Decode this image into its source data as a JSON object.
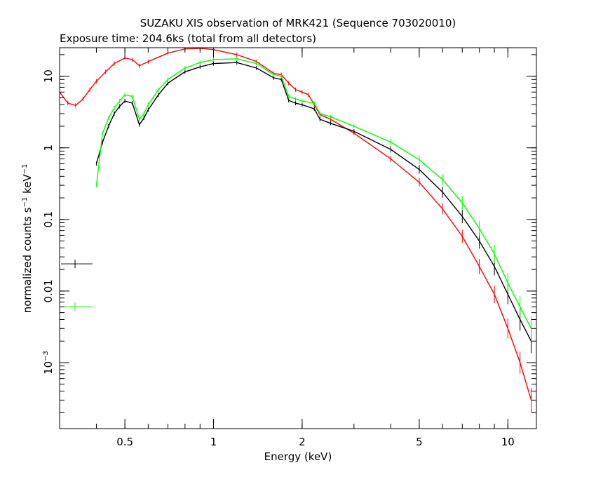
{
  "chart_data": {
    "type": "scatter",
    "title": "SUZAKU XIS observation of MRK421 (Sequence 703020010)",
    "subtitle": "Exposure time: 204.6ks (total from all detectors)",
    "xlabel": "Energy (keV)",
    "ylabel_main": "normalized counts s",
    "ylabel_sup1": "−1",
    "ylabel_mid": " keV",
    "ylabel_sup2": "−1",
    "x_scale": "log",
    "y_scale": "log",
    "xlim": [
      0.3,
      12.5
    ],
    "ylim": [
      0.00012,
      25
    ],
    "grid": false,
    "x_ticks": [
      {
        "value": 0.5,
        "label": "0.5"
      },
      {
        "value": 1,
        "label": "1"
      },
      {
        "value": 2,
        "label": "2"
      },
      {
        "value": 5,
        "label": "5"
      },
      {
        "value": 10,
        "label": "10"
      }
    ],
    "y_ticks": [
      {
        "value": 10,
        "label": "10",
        "sup": ""
      },
      {
        "value": 1,
        "label": "1",
        "sup": ""
      },
      {
        "value": 0.1,
        "label": "0.1",
        "sup": ""
      },
      {
        "value": 0.01,
        "label": "0.01",
        "sup": ""
      },
      {
        "value": 0.001,
        "label": "10",
        "sup": "−3"
      }
    ],
    "series": [
      {
        "color": "#ff0000",
        "x": [
          0.3,
          0.32,
          0.34,
          0.36,
          0.38,
          0.4,
          0.43,
          0.46,
          0.5,
          0.53,
          0.56,
          0.6,
          0.7,
          0.8,
          0.9,
          1.0,
          1.2,
          1.4,
          1.6,
          1.7,
          1.8,
          1.9,
          2.0,
          2.1,
          2.2,
          2.3,
          2.5,
          3.0,
          4.0,
          5.0,
          6.0,
          7.0,
          8.0,
          9.0,
          10.0,
          11.0,
          12.0
        ],
        "y": [
          6,
          4.2,
          3.9,
          4.8,
          6.5,
          8.5,
          11.5,
          15,
          18,
          17,
          14,
          16,
          21,
          24,
          24.5,
          23.5,
          20,
          16,
          11,
          10.5,
          8,
          6.5,
          6,
          5.5,
          4,
          2.9,
          2.5,
          1.6,
          0.7,
          0.33,
          0.14,
          0.058,
          0.022,
          0.009,
          0.003,
          0.001,
          0.0003
        ]
      },
      {
        "color": "#000000",
        "x": [
          0.4,
          0.42,
          0.44,
          0.46,
          0.48,
          0.5,
          0.53,
          0.56,
          0.58,
          0.6,
          0.65,
          0.7,
          0.8,
          0.9,
          1.0,
          1.2,
          1.4,
          1.6,
          1.7,
          1.8,
          1.9,
          2.0,
          2.2,
          2.3,
          2.5,
          3.0,
          4.0,
          5.0,
          6.0,
          7.0,
          8.0,
          9.0,
          10.0,
          11.0,
          12.0
        ],
        "y": [
          0.6,
          1.2,
          2.0,
          3.0,
          3.8,
          4.5,
          4.2,
          2.1,
          2.6,
          3.4,
          5.5,
          8,
          11.5,
          13.5,
          15,
          15.5,
          13,
          9.5,
          9.0,
          4.6,
          4.2,
          4.0,
          3.5,
          2.5,
          2.2,
          1.7,
          0.95,
          0.5,
          0.24,
          0.11,
          0.05,
          0.022,
          0.009,
          0.004,
          0.002
        ]
      },
      {
        "color": "#00ff00",
        "x": [
          0.4,
          0.42,
          0.44,
          0.46,
          0.48,
          0.5,
          0.53,
          0.56,
          0.58,
          0.6,
          0.65,
          0.7,
          0.8,
          0.9,
          1.0,
          1.2,
          1.4,
          1.6,
          1.7,
          1.8,
          1.9,
          2.0,
          2.2,
          2.3,
          2.5,
          3.0,
          4.0,
          5.0,
          6.0,
          7.0,
          8.0,
          9.0,
          10.0,
          11.0,
          12.0
        ],
        "y": [
          0.3,
          1.6,
          2.6,
          3.6,
          4.5,
          5.5,
          5.2,
          2.5,
          3.0,
          4.0,
          6.5,
          9,
          13,
          15.5,
          17,
          17.5,
          15,
          10.5,
          10,
          5.2,
          4.8,
          4.5,
          4.2,
          3.0,
          2.7,
          2.0,
          1.2,
          0.68,
          0.36,
          0.17,
          0.075,
          0.033,
          0.013,
          0.006,
          0.003
        ]
      }
    ],
    "legend_markers": [
      {
        "color": "#000000",
        "y": 0.024
      },
      {
        "color": "#00ff00",
        "y": 0.006
      }
    ]
  }
}
